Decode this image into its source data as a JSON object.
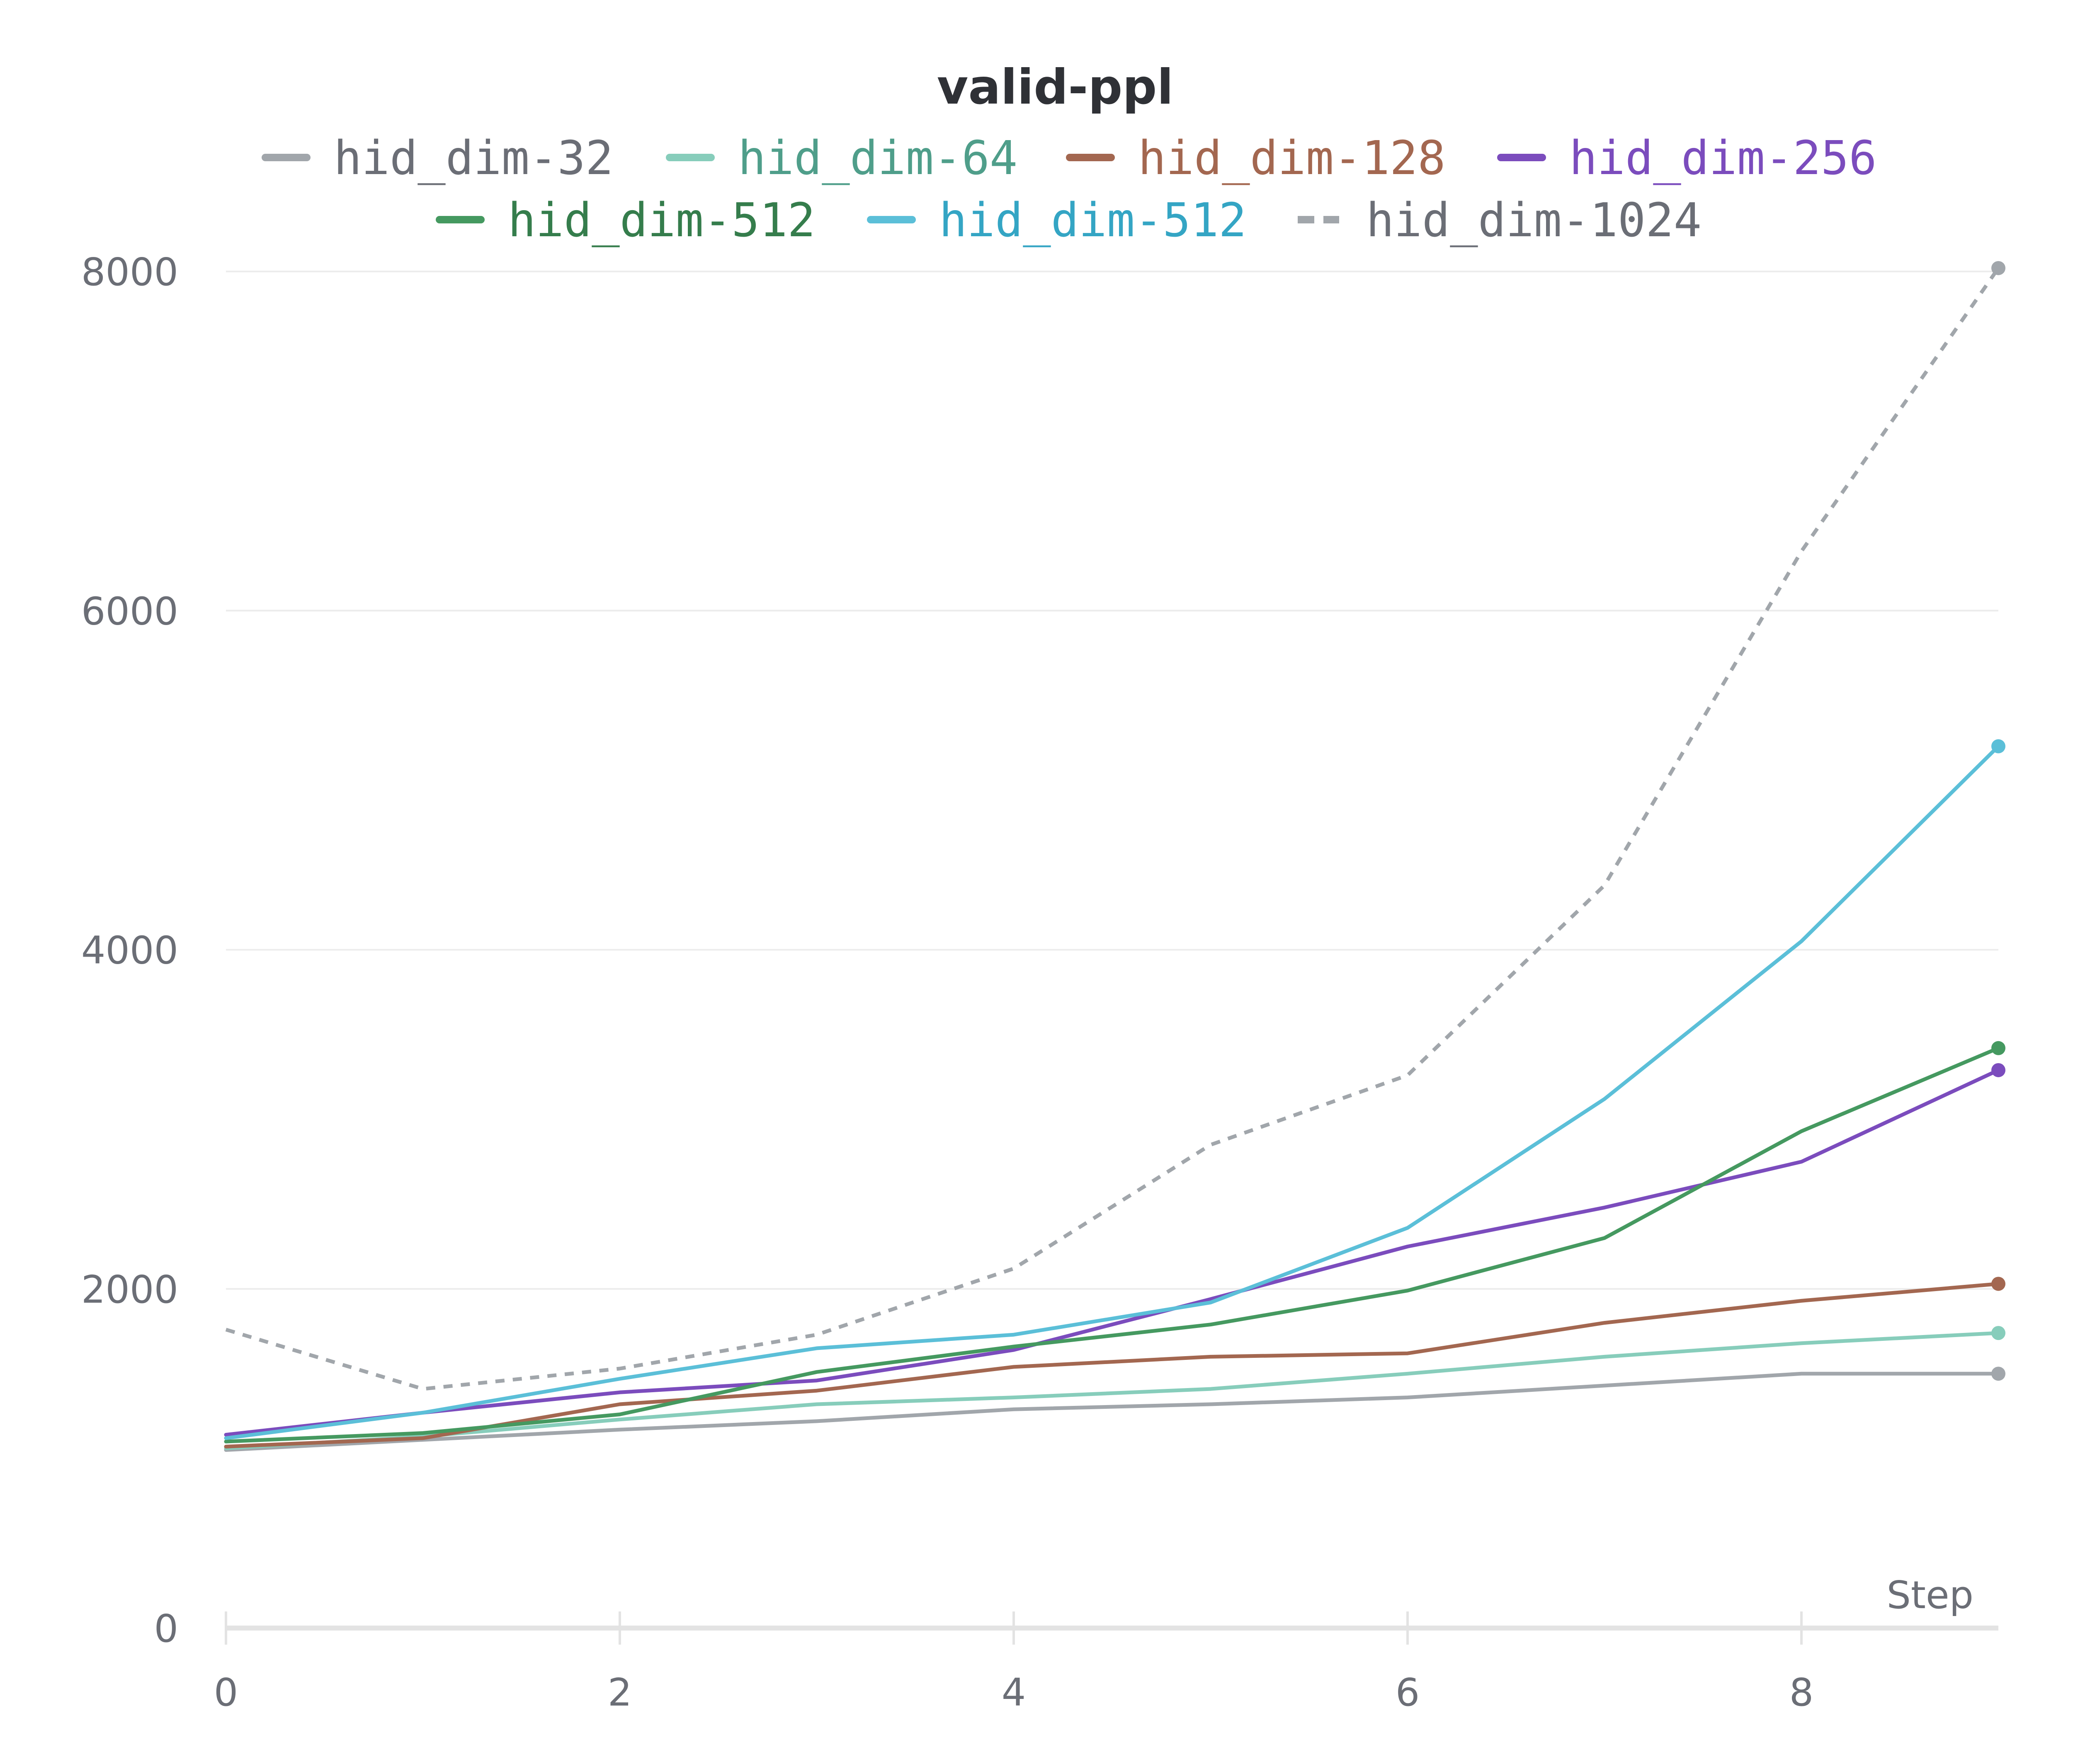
{
  "chart_data": {
    "type": "line",
    "title": "valid-ppl",
    "xlabel": "Step",
    "ylabel": "",
    "xlim": [
      0,
      9
    ],
    "ylim": [
      0,
      8000
    ],
    "x_ticks": [
      0,
      2,
      4,
      6,
      8
    ],
    "y_ticks": [
      0,
      2000,
      4000,
      6000,
      8000
    ],
    "grid": true,
    "legend_position": "top-center",
    "x": [
      0,
      1,
      2,
      3,
      4,
      5,
      6,
      7,
      8,
      9
    ],
    "series": [
      {
        "name": "hid_dim-32",
        "color": "#a1a6ab",
        "label_color": "#6b6e76",
        "dash": false,
        "values": [
          1050,
          1110,
          1170,
          1220,
          1290,
          1320,
          1360,
          1430,
          1500,
          1500
        ]
      },
      {
        "name": "hid_dim-64",
        "color": "#87cdbb",
        "label_color": "#4f9e8a",
        "dash": false,
        "values": [
          1060,
          1130,
          1230,
          1320,
          1360,
          1410,
          1500,
          1600,
          1680,
          1740
        ]
      },
      {
        "name": "hid_dim-128",
        "color": "#a36750",
        "label_color": "#a36750",
        "dash": false,
        "values": [
          1070,
          1120,
          1320,
          1400,
          1540,
          1600,
          1620,
          1800,
          1930,
          2030
        ]
      },
      {
        "name": "hid_dim-256",
        "color": "#7b4cbd",
        "label_color": "#7b4cbd",
        "dash": false,
        "values": [
          1140,
          1270,
          1390,
          1460,
          1640,
          1940,
          2250,
          2480,
          2750,
          3290
        ]
      },
      {
        "name": "hid_dim-512",
        "color": "#459960",
        "label_color": "#357d4c",
        "dash": false,
        "values": [
          1100,
          1150,
          1260,
          1510,
          1660,
          1790,
          1990,
          2300,
          2930,
          3420
        ]
      },
      {
        "name": "hid_dim-512",
        "color": "#5bbfd8",
        "label_color": "#34a5c4",
        "dash": false,
        "values": [
          1120,
          1270,
          1470,
          1650,
          1730,
          1920,
          2360,
          3120,
          4050,
          5200
        ]
      },
      {
        "name": "hid_dim-1024",
        "color": "#a1a6ab",
        "label_color": "#6b6e76",
        "dash": true,
        "values": [
          1760,
          1410,
          1530,
          1730,
          2120,
          2850,
          3260,
          4380,
          6350,
          8020
        ]
      }
    ]
  }
}
